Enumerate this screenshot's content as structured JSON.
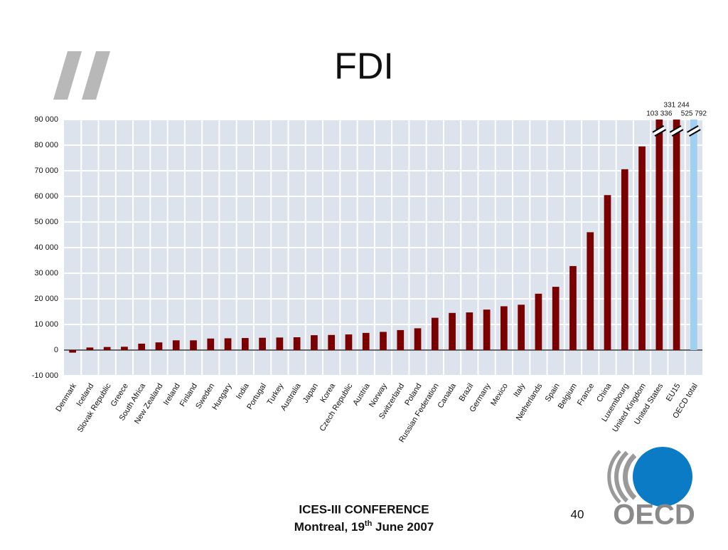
{
  "title": "FDI",
  "chart_data": {
    "type": "bar",
    "categories": [
      "Denmark",
      "Iceland",
      "Slovak Republic",
      "Greece",
      "South Africa",
      "New Zealand",
      "Ireland",
      "Finland",
      "Sweden",
      "Hungary",
      "India",
      "Portugal",
      "Turkey",
      "Australia",
      "Japan",
      "Korea",
      "Czech Republic",
      "Austria",
      "Norway",
      "Switzerland",
      "Poland",
      "Russian Federation",
      "Canada",
      "Brazil",
      "Germany",
      "Mexico",
      "Italy",
      "Netherlands",
      "Spain",
      "Belgium",
      "France",
      "China",
      "Luxembourg",
      "United Kingdom",
      "United States",
      "EU15",
      "OECD total"
    ],
    "values": [
      -1000,
      1000,
      1200,
      1300,
      2500,
      3000,
      3800,
      3800,
      4500,
      4600,
      4700,
      4800,
      4900,
      5000,
      5800,
      5900,
      6100,
      6700,
      7100,
      7800,
      8500,
      12600,
      14500,
      14700,
      15800,
      17100,
      17700,
      22000,
      24700,
      32800,
      46000,
      60500,
      70600,
      79500,
      103336,
      331244,
      525792
    ],
    "value_labels": [
      null,
      null,
      null,
      null,
      null,
      null,
      null,
      null,
      null,
      null,
      null,
      null,
      null,
      null,
      null,
      null,
      null,
      null,
      null,
      null,
      null,
      null,
      null,
      null,
      null,
      null,
      null,
      null,
      null,
      null,
      null,
      null,
      null,
      null,
      "103 336",
      "331 244",
      "525 792"
    ],
    "colors": [
      "#7a0000",
      "#7a0000",
      "#7a0000",
      "#7a0000",
      "#7a0000",
      "#7a0000",
      "#7a0000",
      "#7a0000",
      "#7a0000",
      "#7a0000",
      "#7a0000",
      "#7a0000",
      "#7a0000",
      "#7a0000",
      "#7a0000",
      "#7a0000",
      "#7a0000",
      "#7a0000",
      "#7a0000",
      "#7a0000",
      "#7a0000",
      "#7a0000",
      "#7a0000",
      "#7a0000",
      "#7a0000",
      "#7a0000",
      "#7a0000",
      "#7a0000",
      "#7a0000",
      "#7a0000",
      "#7a0000",
      "#7a0000",
      "#7a0000",
      "#7a0000",
      "#7a0000",
      "#7a0000",
      "#9fd0f2"
    ],
    "ylim": [
      -10000,
      90000
    ],
    "yticks": [
      {
        "value": -10000,
        "label": "-10 000"
      },
      0,
      {
        "value": 10000,
        "label": "10 000"
      },
      {
        "value": 20000,
        "label": "20 000"
      },
      {
        "value": 30000,
        "label": "30 000"
      },
      {
        "value": 40000,
        "label": "40 000"
      },
      {
        "value": 50000,
        "label": "50 000"
      },
      {
        "value": 60000,
        "label": "60 000"
      },
      {
        "value": 70000,
        "label": "70 000"
      },
      {
        "value": 80000,
        "label": "80 000"
      },
      {
        "value": 90000,
        "label": "90 000"
      }
    ],
    "grid": true
  },
  "footer": {
    "line1": "ICES-III CONFERENCE",
    "line2_before": "Montreal, 19",
    "line2_sup": "th",
    "line2_after": " June 2007"
  },
  "page_number": "40",
  "logo": "OECD"
}
